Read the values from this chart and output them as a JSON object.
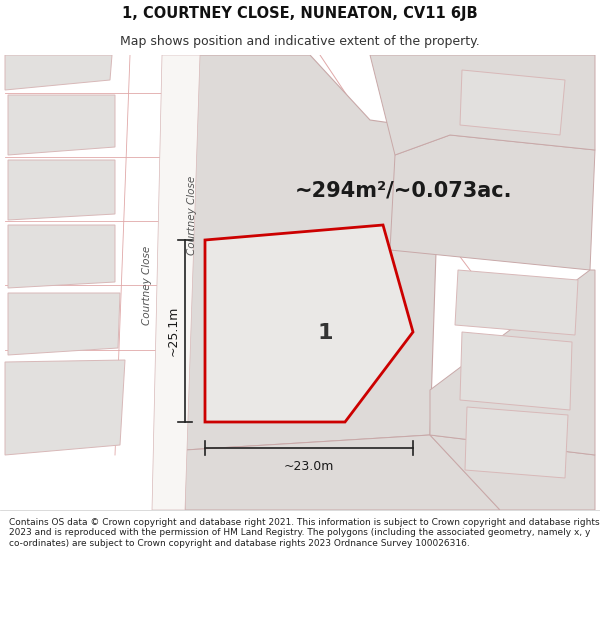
{
  "title_line1": "1, COURTNEY CLOSE, NUNEATON, CV11 6JB",
  "title_line2": "Map shows position and indicative extent of the property.",
  "area_text": "~294m²/~0.073ac.",
  "plot_label": "1",
  "dim_horizontal": "~23.0m",
  "dim_vertical": "~25.1m",
  "road_label": "Courtney Close",
  "footer_text": "Contains OS data © Crown copyright and database right 2021. This information is subject to Crown copyright and database rights 2023 and is reproduced with the permission of HM Land Registry. The polygons (including the associated geometry, namely x, y co-ordinates) are subject to Crown copyright and database rights 2023 Ordnance Survey 100026316.",
  "bg_color": "#ffffff",
  "map_bg": "#f0eeec",
  "building_fill": "#e2e0de",
  "building_edge_light": "#d8b8b8",
  "highlight_plot_fill": "#eae8e6",
  "highlight_plot_edge": "#cc0000",
  "road_fill": "#f8f6f4",
  "road_edge": "#d8b8b8",
  "plot_outline_fill": "#dedad8",
  "plot_outline_edge": "#c8a8a8",
  "title_fontsize": 10.5,
  "subtitle_fontsize": 9,
  "footer_fontsize": 6.5,
  "area_fontsize": 15,
  "label_fontsize": 16,
  "dim_fontsize": 9,
  "road_fontsize": 7.5
}
